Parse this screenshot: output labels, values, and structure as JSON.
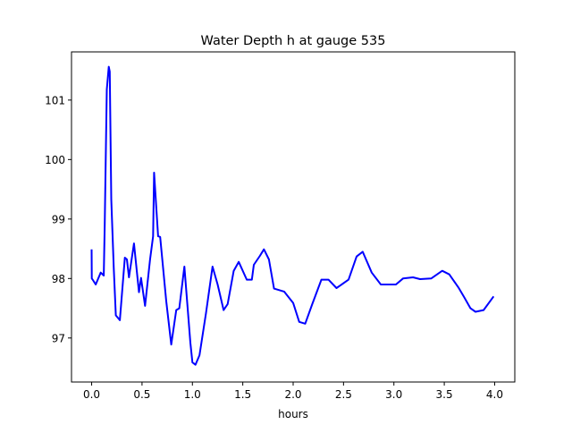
{
  "chart_data": {
    "type": "line",
    "title": "Water Depth h at gauge 535",
    "xlabel": "hours",
    "ylabel": "",
    "xlim": [
      -0.2,
      4.2
    ],
    "ylim": [
      96.26,
      101.81
    ],
    "xticks": [
      "0.0",
      "0.5",
      "1.0",
      "1.5",
      "2.0",
      "2.5",
      "3.0",
      "3.5",
      "4.0"
    ],
    "xtick_values": [
      0,
      0.5,
      1,
      1.5,
      2,
      2.5,
      3,
      3.5,
      4
    ],
    "yticks": [
      "97",
      "98",
      "99",
      "100",
      "101"
    ],
    "ytick_values": [
      97,
      98,
      99,
      100,
      101
    ],
    "grid": false,
    "series": [
      {
        "name": "h",
        "color": "#0000ff",
        "x": [
          0,
          0.001,
          0.01,
          0.04,
          0.09,
          0.12,
          0.13,
          0.15,
          0.17,
          0.18,
          0.195,
          0.22,
          0.24,
          0.28,
          0.33,
          0.35,
          0.37,
          0.42,
          0.47,
          0.49,
          0.53,
          0.58,
          0.61,
          0.62,
          0.66,
          0.68,
          0.74,
          0.79,
          0.84,
          0.87,
          0.92,
          0.98,
          1.0,
          1.03,
          1.07,
          1.135,
          1.2,
          1.25,
          1.31,
          1.35,
          1.41,
          1.46,
          1.54,
          1.59,
          1.61,
          1.67,
          1.71,
          1.76,
          1.81,
          1.91,
          2.0,
          2.06,
          2.12,
          2.19,
          2.28,
          2.35,
          2.43,
          2.55,
          2.63,
          2.69,
          2.78,
          2.87,
          3.02,
          3.09,
          3.19,
          3.26,
          3.37,
          3.48,
          3.55,
          3.64,
          3.7,
          3.76,
          3.81,
          3.89,
          3.99
        ],
        "y": [
          98.49,
          98.0,
          97.98,
          97.9,
          98.1,
          98.05,
          98.92,
          101.18,
          101.56,
          101.48,
          99.33,
          98.17,
          97.38,
          97.3,
          98.35,
          98.32,
          98.02,
          98.59,
          97.77,
          98.01,
          97.54,
          98.32,
          98.71,
          99.78,
          98.71,
          98.7,
          97.62,
          96.89,
          97.47,
          97.5,
          98.2,
          96.92,
          96.59,
          96.55,
          96.71,
          97.42,
          98.2,
          97.9,
          97.47,
          97.57,
          98.13,
          98.28,
          97.98,
          97.98,
          98.23,
          98.38,
          98.49,
          98.32,
          97.83,
          97.78,
          97.59,
          97.27,
          97.24,
          97.57,
          97.98,
          97.98,
          97.84,
          97.98,
          98.37,
          98.45,
          98.1,
          97.9,
          97.9,
          98.0,
          98.02,
          97.99,
          98.0,
          98.13,
          98.07,
          97.85,
          97.68,
          97.5,
          97.44,
          97.47,
          97.7
        ]
      }
    ]
  }
}
